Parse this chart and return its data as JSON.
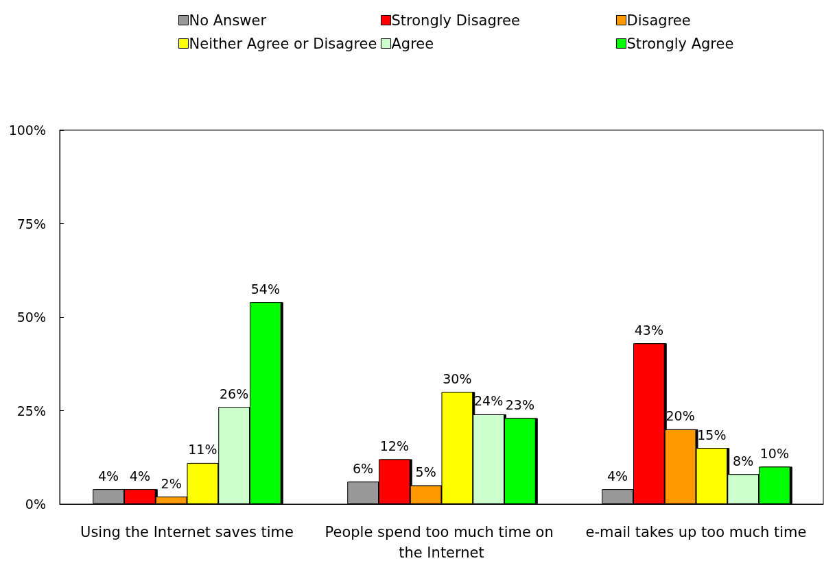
{
  "chart_data": {
    "type": "bar",
    "categories": [
      "Using the Internet saves time",
      "People spend too much time on the Internet",
      "e-mail takes up too much time"
    ],
    "series": [
      {
        "name": "No Answer",
        "color": "#999999",
        "values": [
          4,
          6,
          4
        ],
        "value_labels": [
          "4%",
          "6%",
          "4%"
        ]
      },
      {
        "name": "Strongly Disagree",
        "color": "#ff0000",
        "values": [
          4,
          12,
          43
        ],
        "value_labels": [
          "4%",
          "12%",
          "43%"
        ]
      },
      {
        "name": "Disagree",
        "color": "#ff9900",
        "values": [
          2,
          5,
          20
        ],
        "value_labels": [
          "2%",
          "5%",
          "20%"
        ]
      },
      {
        "name": "Neither Agree or Disagree",
        "color": "#ffff00",
        "values": [
          11,
          30,
          15
        ],
        "value_labels": [
          "11%",
          "30%",
          "15%"
        ]
      },
      {
        "name": "Agree",
        "color": "#ccffcc",
        "values": [
          26,
          24,
          8
        ],
        "value_labels": [
          "26%",
          "24%",
          "8%"
        ]
      },
      {
        "name": "Strongly Agree",
        "color": "#00ff00",
        "values": [
          54,
          23,
          10
        ],
        "value_labels": [
          "54%",
          "23%",
          "10%"
        ]
      }
    ],
    "ylim": [
      0,
      100
    ],
    "yticks": [
      {
        "value": 0,
        "label": "0%"
      },
      {
        "value": 25,
        "label": "25%"
      },
      {
        "value": 50,
        "label": "50%"
      },
      {
        "value": 75,
        "label": "75%"
      },
      {
        "value": 100,
        "label": "100%"
      }
    ],
    "grid": false,
    "legend": "top"
  }
}
